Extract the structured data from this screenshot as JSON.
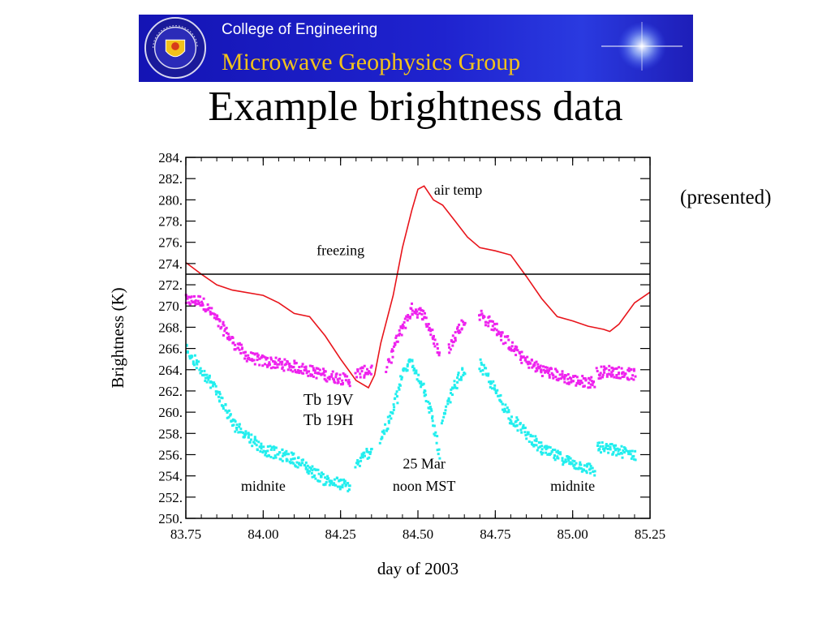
{
  "banner": {
    "line1": "College of Engineering",
    "line2": "Microwave Geophysics Group",
    "seal_text": "THE UNIVERSITY OF MICHIGAN 1817",
    "colors": {
      "background": "#1f23cf",
      "line1": "#ffffff",
      "line2": "#f2c21b"
    }
  },
  "slide": {
    "title": "Example brightness data",
    "note": "(presented)"
  },
  "chart_data": {
    "type": "scatter",
    "title": "",
    "xlabel": "day of 2003",
    "ylabel": "Brightness (K)",
    "xlim": [
      83.75,
      85.25
    ],
    "ylim": [
      250,
      284
    ],
    "x_ticks": [
      "83.75",
      "84.00",
      "84.25",
      "84.50",
      "84.75",
      "85.00",
      "85.25"
    ],
    "y_ticks": [
      "250.",
      "252.",
      "254.",
      "256.",
      "258.",
      "260.",
      "262.",
      "264.",
      "266.",
      "268.",
      "270.",
      "272.",
      "274.",
      "276.",
      "278.",
      "280.",
      "282.",
      "284."
    ],
    "grid": false,
    "freezing_level": 273,
    "series": [
      {
        "label": "air temp",
        "kind": "line",
        "color": "#e8141b",
        "points": [
          [
            83.75,
            274.1
          ],
          [
            83.8,
            273
          ],
          [
            83.85,
            272
          ],
          [
            83.9,
            271.5
          ],
          [
            84.0,
            271
          ],
          [
            84.05,
            270.3
          ],
          [
            84.1,
            269.3
          ],
          [
            84.15,
            269
          ],
          [
            84.2,
            267.2
          ],
          [
            84.25,
            265
          ],
          [
            84.3,
            263
          ],
          [
            84.34,
            262.3
          ],
          [
            84.36,
            263.5
          ],
          [
            84.38,
            266.5
          ],
          [
            84.42,
            271
          ],
          [
            84.45,
            275.5
          ],
          [
            84.48,
            279
          ],
          [
            84.5,
            281
          ],
          [
            84.52,
            281.3
          ],
          [
            84.55,
            280
          ],
          [
            84.58,
            279.5
          ],
          [
            84.62,
            278
          ],
          [
            84.66,
            276.5
          ],
          [
            84.7,
            275.5
          ],
          [
            84.75,
            275.2
          ],
          [
            84.8,
            274.8
          ],
          [
            84.85,
            272.8
          ],
          [
            84.9,
            270.7
          ],
          [
            84.95,
            269
          ],
          [
            85.0,
            268.6
          ],
          [
            85.05,
            268.1
          ],
          [
            85.1,
            267.8
          ],
          [
            85.12,
            267.6
          ],
          [
            85.15,
            268.3
          ],
          [
            85.2,
            270.3
          ],
          [
            85.25,
            271.3
          ]
        ]
      },
      {
        "label": "Tb 19V",
        "kind": "scatter",
        "color": "#ee22ee",
        "segments": [
          [
            [
              83.75,
              270.5
            ],
            [
              83.8,
              270.5
            ],
            [
              83.85,
              268.7
            ],
            [
              83.9,
              266.7
            ],
            [
              83.95,
              265.2
            ],
            [
              84.0,
              264.8
            ],
            [
              84.1,
              264.3
            ],
            [
              84.2,
              263.5
            ],
            [
              84.28,
              263
            ]
          ],
          [
            [
              84.3,
              263.6
            ],
            [
              84.35,
              264
            ]
          ],
          [
            [
              84.4,
              264
            ],
            [
              84.42,
              266
            ],
            [
              84.45,
              268
            ],
            [
              84.48,
              269.7
            ],
            [
              84.52,
              269.2
            ],
            [
              84.55,
              267
            ],
            [
              84.57,
              265.5
            ]
          ],
          [
            [
              84.6,
              266
            ],
            [
              84.62,
              267.3
            ],
            [
              84.65,
              268.5
            ]
          ],
          [
            [
              84.7,
              269.2
            ],
            [
              84.75,
              268
            ],
            [
              84.8,
              266.2
            ],
            [
              84.85,
              264.8
            ],
            [
              84.9,
              264
            ],
            [
              85.0,
              263
            ],
            [
              85.07,
              262.8
            ]
          ],
          [
            [
              85.08,
              263.7
            ],
            [
              85.12,
              263.9
            ],
            [
              85.2,
              263.5
            ]
          ]
        ]
      },
      {
        "label": "Tb 19H",
        "kind": "scatter",
        "color": "#22eeee",
        "segments": [
          [
            [
              83.75,
              266
            ],
            [
              83.8,
              264
            ],
            [
              83.85,
              262
            ],
            [
              83.9,
              259
            ],
            [
              83.95,
              257.8
            ],
            [
              84.0,
              256.5
            ],
            [
              84.1,
              255.6
            ],
            [
              84.2,
              253.6
            ],
            [
              84.28,
              253
            ]
          ],
          [
            [
              84.3,
              255
            ],
            [
              84.35,
              256.5
            ]
          ],
          [
            [
              84.38,
              257.5
            ],
            [
              84.42,
              260
            ],
            [
              84.45,
              263.5
            ],
            [
              84.48,
              265
            ],
            [
              84.52,
              262
            ],
            [
              84.55,
              259
            ],
            [
              84.57,
              256
            ]
          ],
          [
            [
              84.58,
              259
            ],
            [
              84.61,
              262
            ],
            [
              84.65,
              264
            ]
          ],
          [
            [
              84.7,
              264.5
            ],
            [
              84.75,
              262
            ],
            [
              84.8,
              259.5
            ],
            [
              84.85,
              258
            ],
            [
              84.9,
              256.5
            ],
            [
              85.0,
              255.2
            ],
            [
              85.07,
              254.5
            ]
          ],
          [
            [
              85.08,
              256.7
            ],
            [
              85.12,
              256.5
            ],
            [
              85.2,
              256
            ]
          ]
        ]
      }
    ],
    "annotations": [
      {
        "text": "freezing",
        "x": 84.25,
        "y": 274.8
      },
      {
        "text": "air temp",
        "x": 84.63,
        "y": 280.5
      },
      {
        "text": "Tb 19V",
        "x": 84.13,
        "y": 260.7
      },
      {
        "text": "Tb 19H",
        "x": 84.13,
        "y": 258.8
      },
      {
        "text": "25 Mar",
        "x": 84.52,
        "y": 254.7
      },
      {
        "text": "noon MST",
        "x": 84.52,
        "y": 252.6
      },
      {
        "text": "midnite",
        "x": 84.0,
        "y": 252.6
      },
      {
        "text": "midnite",
        "x": 85.0,
        "y": 252.6
      }
    ]
  }
}
